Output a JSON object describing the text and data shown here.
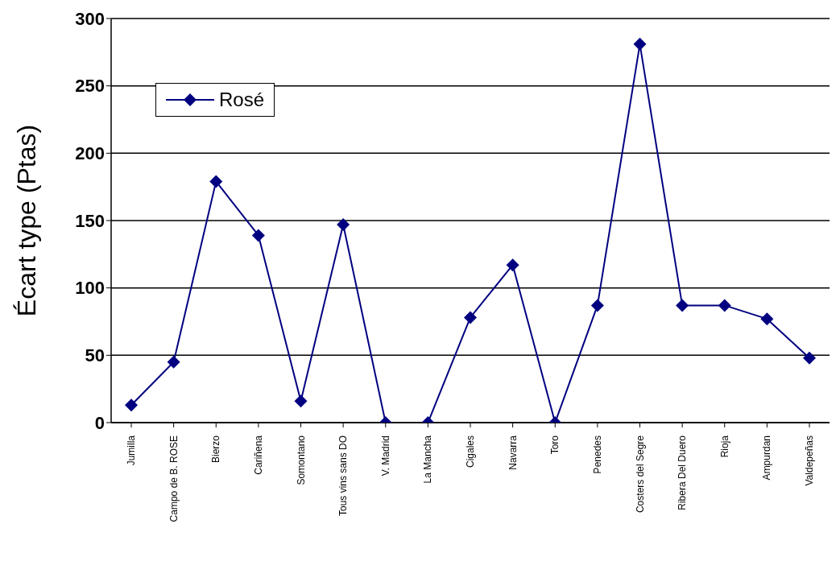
{
  "chart_data": {
    "type": "line",
    "ylabel": "Écart type (Ptas)",
    "categories": [
      "Jumilla",
      "Campo de B. ROSE",
      "Bierzo",
      "Cariñena",
      "Somontano",
      "Tous vins sans DO",
      "V. Madrid",
      "La Mancha",
      "Cigales",
      "Navarra",
      "Toro",
      "Penedes",
      "Costers del Segre",
      "Ribera Del Duero",
      "Rioja",
      "Ampurdan",
      "Valdepeñas"
    ],
    "series": [
      {
        "name": "Rosé",
        "color": "#000080",
        "values": [
          13,
          45,
          179,
          139,
          16,
          147,
          0,
          0,
          78,
          117,
          0,
          87,
          281,
          87,
          87,
          77,
          48
        ]
      }
    ],
    "ylim": [
      0,
      300
    ],
    "yticks": [
      0,
      50,
      100,
      150,
      200,
      250,
      300
    ],
    "grid": "y",
    "legend": "top left",
    "marker": "diamond",
    "line_style": "solid"
  }
}
